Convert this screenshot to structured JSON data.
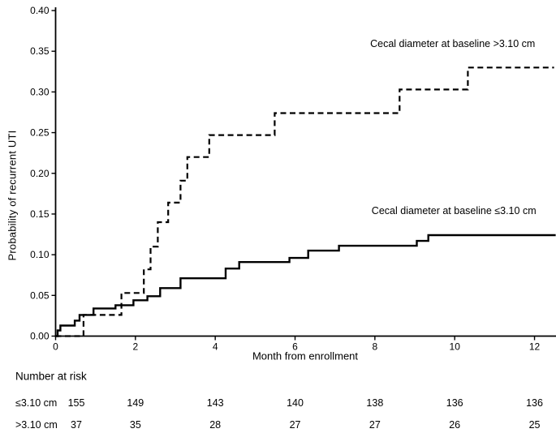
{
  "figure": {
    "background": "#ffffff",
    "ink_color": "#000000"
  },
  "chart_data": {
    "type": "line",
    "subtype": "kaplan-meier-step",
    "title": "",
    "xlabel": "Month from enrollment",
    "ylabel": "Probability of recurrent UTI",
    "xlim": [
      0,
      12.55
    ],
    "ylim": [
      0,
      0.4
    ],
    "xticks": [
      0,
      2,
      4,
      6,
      8,
      10,
      12
    ],
    "yticks": [
      0.0,
      0.05,
      0.1,
      0.15,
      0.2,
      0.25,
      0.3,
      0.35,
      0.4
    ],
    "grid": false,
    "legend_position": "inline-annotations",
    "series": [
      {
        "name": "Cecal diameter at baseline ≤3.10 cm",
        "style": "solid",
        "color": "#000000",
        "steps": [
          [
            0,
            0
          ],
          [
            0.05,
            0.007
          ],
          [
            0.12,
            0.013
          ],
          [
            0.48,
            0.019
          ],
          [
            0.6,
            0.026
          ],
          [
            0.95,
            0.034
          ],
          [
            1.5,
            0.038
          ],
          [
            1.95,
            0.044
          ],
          [
            2.3,
            0.049
          ],
          [
            2.62,
            0.059
          ],
          [
            3.13,
            0.071
          ],
          [
            4.26,
            0.083
          ],
          [
            4.6,
            0.091
          ],
          [
            5.86,
            0.096
          ],
          [
            6.33,
            0.105
          ],
          [
            7.1,
            0.111
          ],
          [
            9.05,
            0.117
          ],
          [
            9.34,
            0.124
          ],
          [
            12.53,
            0.124
          ]
        ]
      },
      {
        "name": "Cecal diameter at baseline >3.10 cm",
        "style": "dashed",
        "color": "#000000",
        "steps": [
          [
            0,
            0
          ],
          [
            0.7,
            0.026
          ],
          [
            1.65,
            0.053
          ],
          [
            2.21,
            0.082
          ],
          [
            2.38,
            0.11
          ],
          [
            2.56,
            0.14
          ],
          [
            2.82,
            0.164
          ],
          [
            3.13,
            0.191
          ],
          [
            3.3,
            0.22
          ],
          [
            3.85,
            0.247
          ],
          [
            5.49,
            0.274
          ],
          [
            8.62,
            0.303
          ],
          [
            10.33,
            0.33
          ],
          [
            12.49,
            0.33
          ]
        ]
      }
    ],
    "annotations": [
      {
        "text": "Cecal diameter at baseline >3.10 cm",
        "month": 9.95,
        "value": 0.359
      },
      {
        "text": "Cecal diameter at baseline ≤3.10 cm",
        "month": 9.98,
        "value": 0.154
      }
    ]
  },
  "risk_table": {
    "title": "Number at risk",
    "columns_months": [
      0,
      2,
      4,
      6,
      8,
      10,
      12
    ],
    "rows": [
      {
        "label": "≤3.10 cm",
        "values": [
          155,
          149,
          143,
          140,
          138,
          136,
          136
        ]
      },
      {
        "label": ">3.10 cm",
        "values": [
          37,
          35,
          28,
          27,
          27,
          26,
          25
        ]
      }
    ]
  }
}
